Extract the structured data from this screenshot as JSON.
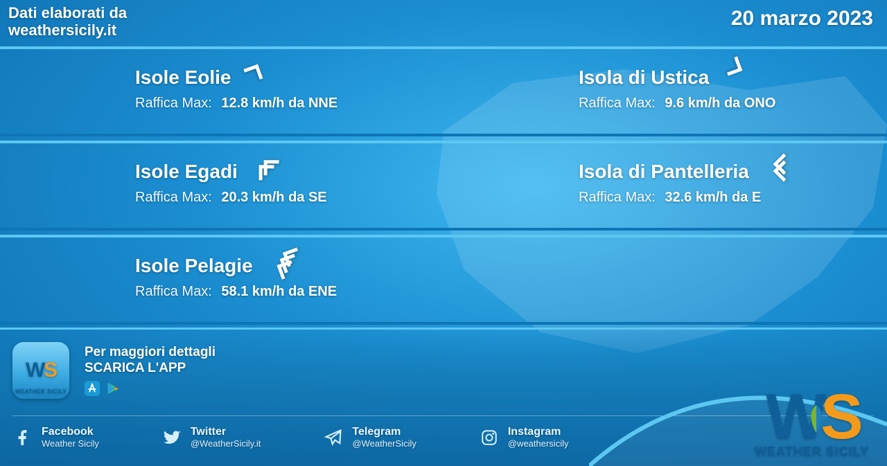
{
  "colors": {
    "bg_center": "#3db8f0",
    "bg_mid": "#1b8ed1",
    "bg_edge": "#0d6fb0",
    "separator_light": "#5cc8f2",
    "separator_dark": "#0e75b5",
    "text": "#ffffff",
    "logo_w": "#0e5f9a",
    "logo_s": "#f49a1a",
    "leaf_green": "#7bb52e",
    "leaf_blue": "#1f7fbe"
  },
  "header": {
    "source_label_line1": "Dati elaborati da",
    "source_label_line2": "weathersicily.it",
    "date": "20 marzo 2023"
  },
  "islands": [
    {
      "name": "Isole Eolie",
      "gust_label": "Raffica Max:",
      "gust_value": "12.8 km/h da NNE",
      "wind_arrow_rotation": 25,
      "arrow_count": 1
    },
    {
      "name": "Isola di Ustica",
      "gust_label": "Raffica Max:",
      "gust_value": "9.6 km/h da ONO",
      "wind_arrow_rotation": 115,
      "arrow_count": 1
    },
    {
      "name": "Isole Egadi",
      "gust_label": "Raffica Max:",
      "gust_value": "20.3 km/h da SE",
      "wind_arrow_rotation": -45,
      "arrow_count": 2
    },
    {
      "name": "Isola di Pantelleria",
      "gust_label": "Raffica Max:",
      "gust_value": "32.6 km/h da E",
      "wind_arrow_rotation": -90,
      "arrow_count": 2
    },
    {
      "name": "Isole Pelagie",
      "gust_label": "Raffica Max:",
      "gust_value": "58.1 km/h da ENE",
      "wind_arrow_rotation": -65,
      "arrow_count": 3
    }
  ],
  "footer": {
    "details_line1": "Per maggiori dettagli",
    "details_line2": "SCARICA L'APP",
    "app_badge_caption": "WEATHER SICILY",
    "brand_caption": "WEATHER SICILY",
    "socials": [
      {
        "icon": "facebook",
        "name": "Facebook",
        "handle": "Weather Sicily"
      },
      {
        "icon": "twitter",
        "name": "Twitter",
        "handle": "@WeatherSicily.it"
      },
      {
        "icon": "telegram",
        "name": "Telegram",
        "handle": "@WeatherSicily"
      },
      {
        "icon": "instagram",
        "name": "Instagram",
        "handle": "@weathersicily"
      }
    ]
  }
}
